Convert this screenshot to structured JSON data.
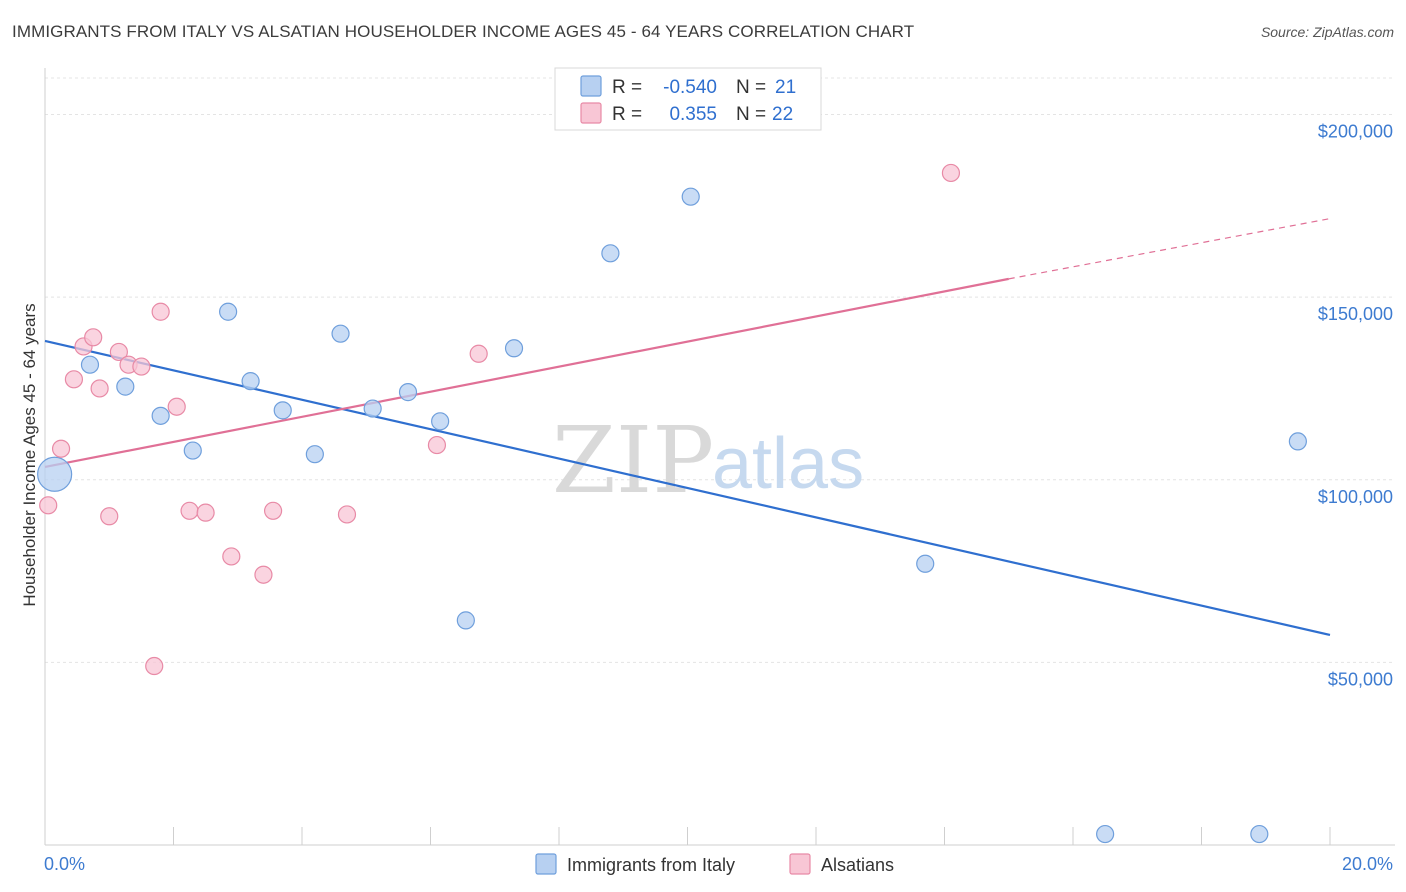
{
  "title": "IMMIGRANTS FROM ITALY VS ALSATIAN HOUSEHOLDER INCOME AGES 45 - 64 YEARS CORRELATION CHART",
  "source": "Source: ZipAtlas.com",
  "watermark": {
    "zip": "ZIP",
    "atlas": "atlas"
  },
  "colors": {
    "blue_fill": "#b7d0f1",
    "blue_stroke": "#6f9fdc",
    "blue_line": "#2f6fcf",
    "pink_fill": "#f8c6d5",
    "pink_stroke": "#e88aa6",
    "pink_line": "#e07096",
    "grid": "#e4e4e4",
    "tick_text": "#3d7bd0"
  },
  "legend": {
    "rows": [
      {
        "r_label": "R =",
        "r_value": "-0.540",
        "n_label": "N =",
        "n_value": "21"
      },
      {
        "r_label": "R =",
        "r_value": "0.355",
        "n_label": "N =",
        "n_value": "22"
      }
    ]
  },
  "bottom_legend": [
    "Immigrants from Italy",
    "Alsatians"
  ],
  "chart_data": {
    "type": "scatter",
    "xlabel": "",
    "ylabel": "Householder Income Ages 45 - 64 years",
    "xlim": [
      0,
      20
    ],
    "ylim": [
      0,
      210000
    ],
    "x_tick_labels": [
      "0.0%",
      "20.0%"
    ],
    "y_ticks": [
      50000,
      100000,
      150000,
      200000
    ],
    "y_tick_labels": [
      "$50,000",
      "$100,000",
      "$150,000",
      "$200,000"
    ],
    "grid": true,
    "series": [
      {
        "name": "Immigrants from Italy",
        "color": "blue",
        "points": [
          {
            "x": 0.15,
            "y": 101500,
            "big": true
          },
          {
            "x": 0.7,
            "y": 131500
          },
          {
            "x": 1.25,
            "y": 125500
          },
          {
            "x": 1.8,
            "y": 117500
          },
          {
            "x": 2.3,
            "y": 108000
          },
          {
            "x": 2.85,
            "y": 146000
          },
          {
            "x": 3.2,
            "y": 127000
          },
          {
            "x": 3.7,
            "y": 119000
          },
          {
            "x": 4.2,
            "y": 107000
          },
          {
            "x": 4.6,
            "y": 140000
          },
          {
            "x": 5.1,
            "y": 119500
          },
          {
            "x": 5.65,
            "y": 124000
          },
          {
            "x": 6.15,
            "y": 116000
          },
          {
            "x": 6.55,
            "y": 61500
          },
          {
            "x": 7.3,
            "y": 136000
          },
          {
            "x": 8.8,
            "y": 162000
          },
          {
            "x": 10.05,
            "y": 177500
          },
          {
            "x": 13.7,
            "y": 77000
          },
          {
            "x": 16.5,
            "y": 3000
          },
          {
            "x": 18.9,
            "y": 3000
          },
          {
            "x": 19.5,
            "y": 110500
          }
        ],
        "trend": {
          "x0": 0.0,
          "y0": 138000,
          "x1": 20.0,
          "y1": 57500
        }
      },
      {
        "name": "Alsatians",
        "color": "pink",
        "points": [
          {
            "x": 0.05,
            "y": 93000
          },
          {
            "x": 0.25,
            "y": 108500
          },
          {
            "x": 0.45,
            "y": 127500
          },
          {
            "x": 0.6,
            "y": 136500
          },
          {
            "x": 0.75,
            "y": 139000
          },
          {
            "x": 0.85,
            "y": 125000
          },
          {
            "x": 1.0,
            "y": 90000
          },
          {
            "x": 1.15,
            "y": 135000
          },
          {
            "x": 1.3,
            "y": 131500
          },
          {
            "x": 1.5,
            "y": 131000
          },
          {
            "x": 1.7,
            "y": 49000
          },
          {
            "x": 1.8,
            "y": 146000
          },
          {
            "x": 2.05,
            "y": 120000
          },
          {
            "x": 2.25,
            "y": 91500
          },
          {
            "x": 2.5,
            "y": 91000
          },
          {
            "x": 2.9,
            "y": 79000
          },
          {
            "x": 3.4,
            "y": 74000
          },
          {
            "x": 3.55,
            "y": 91500
          },
          {
            "x": 4.7,
            "y": 90500
          },
          {
            "x": 6.1,
            "y": 109500
          },
          {
            "x": 6.75,
            "y": 134500
          },
          {
            "x": 14.1,
            "y": 184000
          }
        ],
        "trend": {
          "x0": 0.0,
          "y0": 103500,
          "x1": 15.0,
          "y1": 155000
        },
        "trend_dashed": {
          "x0": 15.0,
          "y0": 155000,
          "x1": 20.0,
          "y1": 171500
        }
      }
    ]
  }
}
